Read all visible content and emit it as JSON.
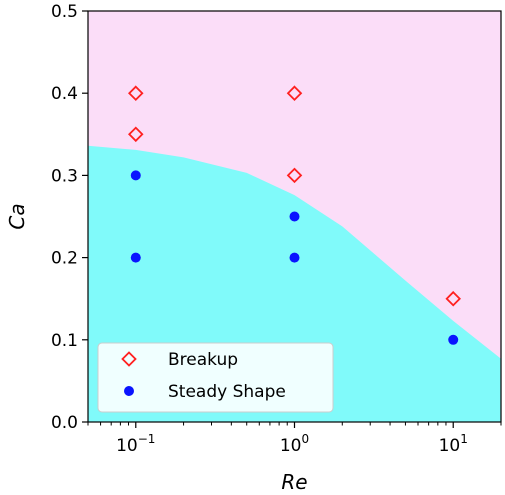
{
  "chart_data": {
    "type": "scatter",
    "title": "",
    "xlabel": "Re",
    "ylabel": "Ca",
    "x_scale": "log",
    "xlim": [
      0.05,
      20
    ],
    "ylim": [
      0,
      0.5
    ],
    "x_ticks": [
      {
        "value": 0.1,
        "base": "10",
        "exp": "−1"
      },
      {
        "value": 1,
        "base": "10",
        "exp": "0"
      },
      {
        "value": 10,
        "base": "10",
        "exp": "1"
      }
    ],
    "y_ticks": [
      {
        "value": 0.0,
        "label": "0.0"
      },
      {
        "value": 0.1,
        "label": "0.1"
      },
      {
        "value": 0.2,
        "label": "0.2"
      },
      {
        "value": 0.3,
        "label": "0.3"
      },
      {
        "value": 0.4,
        "label": "0.4"
      },
      {
        "value": 0.5,
        "label": "0.5"
      }
    ],
    "series": [
      {
        "name": "Breakup",
        "marker": "diamond-open",
        "color": "#ff2020",
        "points": [
          [
            0.1,
            0.4
          ],
          [
            0.1,
            0.35
          ],
          [
            1,
            0.4
          ],
          [
            1,
            0.3
          ],
          [
            10,
            0.15
          ]
        ]
      },
      {
        "name": "Steady Shape",
        "marker": "circle-filled",
        "color": "#0a14ff",
        "points": [
          [
            0.1,
            0.3
          ],
          [
            0.1,
            0.2
          ],
          [
            1,
            0.25
          ],
          [
            1,
            0.2
          ],
          [
            10,
            0.1
          ]
        ]
      }
    ],
    "regions": {
      "upper_color": "#fbddf8",
      "lower_color": "#80fafa",
      "boundary": [
        [
          0.05,
          0.336
        ],
        [
          0.1,
          0.331
        ],
        [
          0.2,
          0.322
        ],
        [
          0.5,
          0.303
        ],
        [
          1,
          0.276
        ],
        [
          2,
          0.238
        ],
        [
          5,
          0.172
        ],
        [
          10,
          0.123
        ],
        [
          20,
          0.077
        ]
      ]
    },
    "legend": {
      "position": "lower-left"
    }
  }
}
